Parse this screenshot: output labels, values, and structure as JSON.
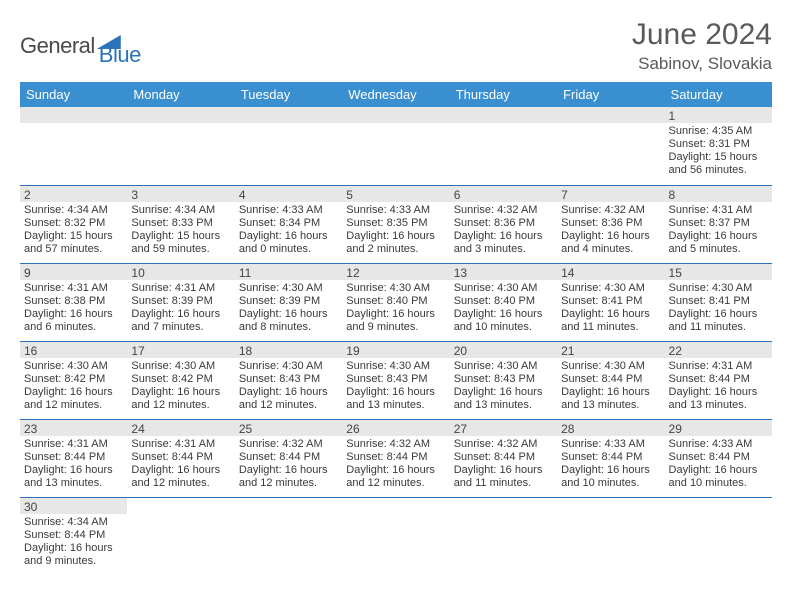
{
  "logo": {
    "textDark": "General",
    "textBlue": "Blue"
  },
  "title": "June 2024",
  "location": "Sabinov, Slovakia",
  "colors": {
    "headerBg": "#3a8fd0",
    "headerText": "#ffffff",
    "rowStripe": "#e7e7e7",
    "rowBorder": "#2a73b8",
    "logoBlue": "#2a73b8",
    "textDark": "#4a4a4a"
  },
  "weekdays": [
    "Sunday",
    "Monday",
    "Tuesday",
    "Wednesday",
    "Thursday",
    "Friday",
    "Saturday"
  ],
  "weeks": [
    [
      {
        "empty": true
      },
      {
        "empty": true
      },
      {
        "empty": true
      },
      {
        "empty": true
      },
      {
        "empty": true
      },
      {
        "empty": true
      },
      {
        "day": "1",
        "sunrise": "Sunrise: 4:35 AM",
        "sunset": "Sunset: 8:31 PM",
        "daylight": "Daylight: 15 hours and 56 minutes."
      }
    ],
    [
      {
        "day": "2",
        "sunrise": "Sunrise: 4:34 AM",
        "sunset": "Sunset: 8:32 PM",
        "daylight": "Daylight: 15 hours and 57 minutes."
      },
      {
        "day": "3",
        "sunrise": "Sunrise: 4:34 AM",
        "sunset": "Sunset: 8:33 PM",
        "daylight": "Daylight: 15 hours and 59 minutes."
      },
      {
        "day": "4",
        "sunrise": "Sunrise: 4:33 AM",
        "sunset": "Sunset: 8:34 PM",
        "daylight": "Daylight: 16 hours and 0 minutes."
      },
      {
        "day": "5",
        "sunrise": "Sunrise: 4:33 AM",
        "sunset": "Sunset: 8:35 PM",
        "daylight": "Daylight: 16 hours and 2 minutes."
      },
      {
        "day": "6",
        "sunrise": "Sunrise: 4:32 AM",
        "sunset": "Sunset: 8:36 PM",
        "daylight": "Daylight: 16 hours and 3 minutes."
      },
      {
        "day": "7",
        "sunrise": "Sunrise: 4:32 AM",
        "sunset": "Sunset: 8:36 PM",
        "daylight": "Daylight: 16 hours and 4 minutes."
      },
      {
        "day": "8",
        "sunrise": "Sunrise: 4:31 AM",
        "sunset": "Sunset: 8:37 PM",
        "daylight": "Daylight: 16 hours and 5 minutes."
      }
    ],
    [
      {
        "day": "9",
        "sunrise": "Sunrise: 4:31 AM",
        "sunset": "Sunset: 8:38 PM",
        "daylight": "Daylight: 16 hours and 6 minutes."
      },
      {
        "day": "10",
        "sunrise": "Sunrise: 4:31 AM",
        "sunset": "Sunset: 8:39 PM",
        "daylight": "Daylight: 16 hours and 7 minutes."
      },
      {
        "day": "11",
        "sunrise": "Sunrise: 4:30 AM",
        "sunset": "Sunset: 8:39 PM",
        "daylight": "Daylight: 16 hours and 8 minutes."
      },
      {
        "day": "12",
        "sunrise": "Sunrise: 4:30 AM",
        "sunset": "Sunset: 8:40 PM",
        "daylight": "Daylight: 16 hours and 9 minutes."
      },
      {
        "day": "13",
        "sunrise": "Sunrise: 4:30 AM",
        "sunset": "Sunset: 8:40 PM",
        "daylight": "Daylight: 16 hours and 10 minutes."
      },
      {
        "day": "14",
        "sunrise": "Sunrise: 4:30 AM",
        "sunset": "Sunset: 8:41 PM",
        "daylight": "Daylight: 16 hours and 11 minutes."
      },
      {
        "day": "15",
        "sunrise": "Sunrise: 4:30 AM",
        "sunset": "Sunset: 8:41 PM",
        "daylight": "Daylight: 16 hours and 11 minutes."
      }
    ],
    [
      {
        "day": "16",
        "sunrise": "Sunrise: 4:30 AM",
        "sunset": "Sunset: 8:42 PM",
        "daylight": "Daylight: 16 hours and 12 minutes."
      },
      {
        "day": "17",
        "sunrise": "Sunrise: 4:30 AM",
        "sunset": "Sunset: 8:42 PM",
        "daylight": "Daylight: 16 hours and 12 minutes."
      },
      {
        "day": "18",
        "sunrise": "Sunrise: 4:30 AM",
        "sunset": "Sunset: 8:43 PM",
        "daylight": "Daylight: 16 hours and 12 minutes."
      },
      {
        "day": "19",
        "sunrise": "Sunrise: 4:30 AM",
        "sunset": "Sunset: 8:43 PM",
        "daylight": "Daylight: 16 hours and 13 minutes."
      },
      {
        "day": "20",
        "sunrise": "Sunrise: 4:30 AM",
        "sunset": "Sunset: 8:43 PM",
        "daylight": "Daylight: 16 hours and 13 minutes."
      },
      {
        "day": "21",
        "sunrise": "Sunrise: 4:30 AM",
        "sunset": "Sunset: 8:44 PM",
        "daylight": "Daylight: 16 hours and 13 minutes."
      },
      {
        "day": "22",
        "sunrise": "Sunrise: 4:31 AM",
        "sunset": "Sunset: 8:44 PM",
        "daylight": "Daylight: 16 hours and 13 minutes."
      }
    ],
    [
      {
        "day": "23",
        "sunrise": "Sunrise: 4:31 AM",
        "sunset": "Sunset: 8:44 PM",
        "daylight": "Daylight: 16 hours and 13 minutes."
      },
      {
        "day": "24",
        "sunrise": "Sunrise: 4:31 AM",
        "sunset": "Sunset: 8:44 PM",
        "daylight": "Daylight: 16 hours and 12 minutes."
      },
      {
        "day": "25",
        "sunrise": "Sunrise: 4:32 AM",
        "sunset": "Sunset: 8:44 PM",
        "daylight": "Daylight: 16 hours and 12 minutes."
      },
      {
        "day": "26",
        "sunrise": "Sunrise: 4:32 AM",
        "sunset": "Sunset: 8:44 PM",
        "daylight": "Daylight: 16 hours and 12 minutes."
      },
      {
        "day": "27",
        "sunrise": "Sunrise: 4:32 AM",
        "sunset": "Sunset: 8:44 PM",
        "daylight": "Daylight: 16 hours and 11 minutes."
      },
      {
        "day": "28",
        "sunrise": "Sunrise: 4:33 AM",
        "sunset": "Sunset: 8:44 PM",
        "daylight": "Daylight: 16 hours and 10 minutes."
      },
      {
        "day": "29",
        "sunrise": "Sunrise: 4:33 AM",
        "sunset": "Sunset: 8:44 PM",
        "daylight": "Daylight: 16 hours and 10 minutes."
      }
    ],
    [
      {
        "day": "30",
        "sunrise": "Sunrise: 4:34 AM",
        "sunset": "Sunset: 8:44 PM",
        "daylight": "Daylight: 16 hours and 9 minutes."
      },
      {
        "empty": true
      },
      {
        "empty": true
      },
      {
        "empty": true
      },
      {
        "empty": true
      },
      {
        "empty": true
      },
      {
        "empty": true
      }
    ]
  ]
}
